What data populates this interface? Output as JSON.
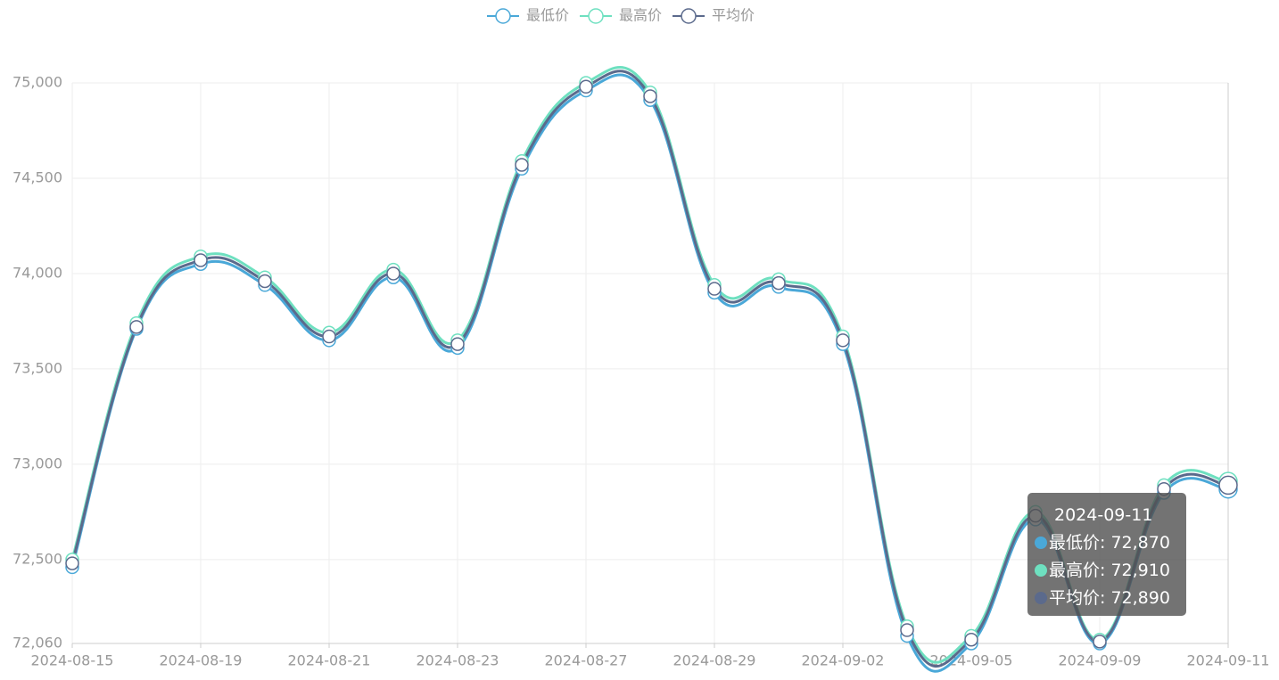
{
  "chart_data": {
    "type": "line",
    "categories": [
      "2024-08-15",
      null,
      "2024-08-19",
      null,
      "2024-08-21",
      null,
      "2024-08-23",
      null,
      "2024-08-27",
      null,
      "2024-08-29",
      null,
      "2024-09-02",
      null,
      "2024-09-05",
      null,
      "2024-09-09",
      null,
      "2024-09-11"
    ],
    "series": [
      {
        "name": "最低价",
        "color": "#4aa8d8",
        "values": [
          72460,
          73710,
          74050,
          73940,
          73650,
          73980,
          73610,
          74550,
          74960,
          74910,
          73900,
          73930,
          73630,
          72100,
          72060,
          72710,
          72060,
          72850,
          72870
        ],
        "value_labels": [
          null,
          null,
          null,
          null,
          null,
          null,
          null,
          null,
          null,
          null,
          null,
          null,
          null,
          null,
          null,
          null,
          null,
          null,
          "72,870"
        ]
      },
      {
        "name": "最高价",
        "color": "#6ee0c0",
        "values": [
          72500,
          73740,
          74090,
          73980,
          73690,
          74020,
          73650,
          74590,
          75000,
          74950,
          73940,
          73970,
          73670,
          72150,
          72100,
          72750,
          72080,
          72890,
          72910
        ],
        "value_labels": [
          null,
          null,
          null,
          null,
          null,
          null,
          null,
          null,
          null,
          null,
          null,
          null,
          null,
          null,
          null,
          null,
          null,
          null,
          "72,910"
        ]
      },
      {
        "name": "平均价",
        "color": "#5b6a8c",
        "values": [
          72480,
          73720,
          74070,
          73960,
          73670,
          74000,
          73630,
          74570,
          74980,
          74930,
          73920,
          73950,
          73650,
          72130,
          72080,
          72730,
          72070,
          72870,
          72890
        ],
        "value_labels": [
          null,
          null,
          null,
          null,
          null,
          null,
          null,
          null,
          null,
          null,
          null,
          null,
          null,
          null,
          null,
          null,
          null,
          null,
          "72,890"
        ]
      }
    ],
    "ylim": [
      72060,
      75000
    ],
    "yticks": [
      {
        "value": 72060,
        "label": "72,060"
      },
      {
        "value": 72500,
        "label": "72,500"
      },
      {
        "value": 73000,
        "label": "73,000"
      },
      {
        "value": 73500,
        "label": "73,500"
      },
      {
        "value": 74000,
        "label": "74,000"
      },
      {
        "value": 74500,
        "label": "74,500"
      },
      {
        "value": 75000,
        "label": "75,000"
      }
    ],
    "grid": true,
    "legend": "top",
    "tooltip_index": 18
  }
}
